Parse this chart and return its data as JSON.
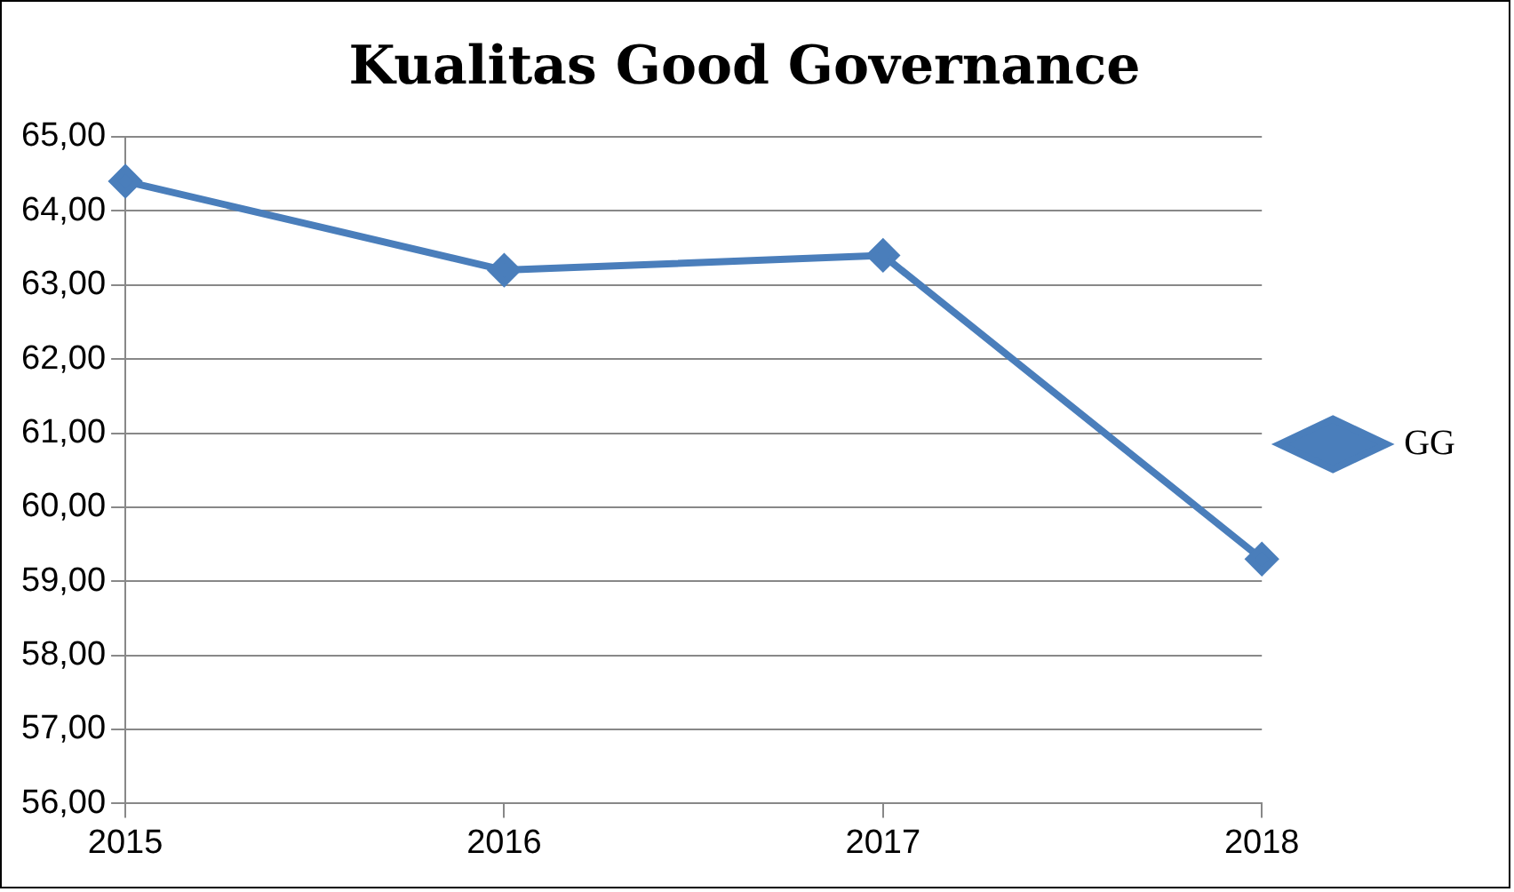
{
  "chart_data": {
    "type": "line",
    "title": "Kualitas Good Governance",
    "categories": [
      "2015",
      "2016",
      "2017",
      "2018"
    ],
    "series": [
      {
        "name": "GG",
        "color": "#4a7ebb",
        "values": [
          64.4,
          63.2,
          63.4,
          59.3
        ]
      }
    ],
    "ylim": [
      56,
      65
    ],
    "yticks": [
      {
        "value": 56,
        "label": "56,00"
      },
      {
        "value": 57,
        "label": "57,00"
      },
      {
        "value": 58,
        "label": "58,00"
      },
      {
        "value": 59,
        "label": "59,00"
      },
      {
        "value": 60,
        "label": "60,00"
      },
      {
        "value": 61,
        "label": "61,00"
      },
      {
        "value": 62,
        "label": "62,00"
      },
      {
        "value": 63,
        "label": "63,00"
      },
      {
        "value": 64,
        "label": "64,00"
      },
      {
        "value": 65,
        "label": "65,00"
      }
    ],
    "grid": "y",
    "legend": "right",
    "marker": "diamond",
    "line_style": "solid"
  }
}
